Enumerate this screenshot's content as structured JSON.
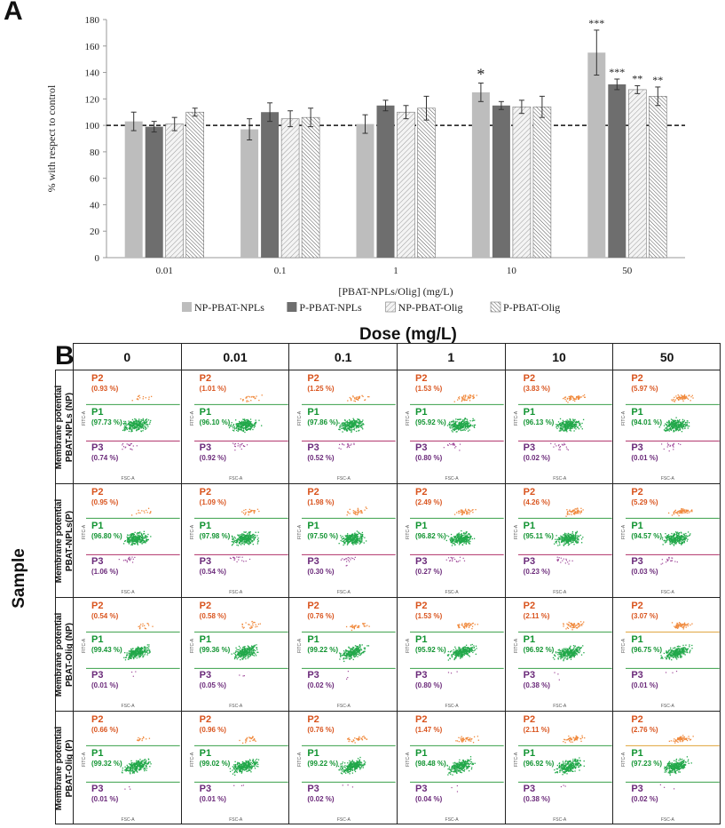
{
  "panel_a_letter": "A",
  "panel_b_letter": "B",
  "chart_data": {
    "type": "bar",
    "title": "",
    "xlabel": "[PBAT-NPLs/Olig] (mg/L)",
    "ylabel": "% with respect to control",
    "ylim": [
      0,
      180
    ],
    "yticks": [
      0,
      20,
      40,
      60,
      80,
      100,
      120,
      140,
      160,
      180
    ],
    "reference_line": 100,
    "legend_position": "bottom",
    "categories": [
      "0.01",
      "0.1",
      "1",
      "10",
      "50"
    ],
    "series": [
      {
        "name": "NP-PBAT-NPLs",
        "values": [
          103,
          97,
          101,
          125,
          155
        ],
        "errors": [
          7,
          8,
          7,
          7,
          17
        ],
        "significance": [
          "",
          "",
          "",
          "*",
          "***"
        ],
        "color": "#bdbdbd",
        "pattern": "solid"
      },
      {
        "name": "P-PBAT-NPLs",
        "values": [
          99,
          110,
          115,
          115,
          131
        ],
        "errors": [
          4,
          7,
          4,
          3,
          4
        ],
        "significance": [
          "",
          "",
          "",
          "",
          "***"
        ],
        "color": "#6e6e6e",
        "pattern": "solid"
      },
      {
        "name": "NP-PBAT-Olig",
        "values": [
          101,
          105,
          110,
          114,
          127
        ],
        "errors": [
          5,
          6,
          5,
          5,
          3
        ],
        "significance": [
          "",
          "",
          "",
          "",
          "**"
        ],
        "color": "#f2f2f2",
        "pattern": "hatch-light"
      },
      {
        "name": "P-PBAT-Olig",
        "values": [
          110,
          106,
          113,
          114,
          122
        ],
        "errors": [
          3,
          7,
          9,
          8,
          7
        ],
        "significance": [
          "",
          "",
          "",
          "",
          "**"
        ],
        "color": "#ffffff",
        "pattern": "hatch-dense"
      }
    ]
  },
  "flow": {
    "dose_title": "Dose (mg/L)",
    "sample_title": "Sample",
    "columns": [
      "0",
      "0.01",
      "0.1",
      "1",
      "10",
      "50"
    ],
    "axis_x": "FSC-A",
    "axis_y": "FITC-A",
    "gates": [
      "P2",
      "P1",
      "P3"
    ],
    "rows": [
      {
        "label_line1": "Membrane potential",
        "label_line2": "PBAT-NPLs (NP)",
        "p2": [
          "(0.93 %)",
          "(1.01 %)",
          "(1.25 %)",
          "(1.53 %)",
          "(3.83 %)",
          "(5.97 %)"
        ],
        "p1": [
          "(97.73 %)",
          "(96.10 %)",
          "(97.86 %)",
          "(95.92 %)",
          "(96.13 %)",
          "(94.01 %)"
        ],
        "p3": [
          "(0.74 %)",
          "(0.92 %)",
          "(0.52 %)",
          "(0.80 %)",
          "(0.02 %)",
          "(0.01 %)"
        ]
      },
      {
        "label_line1": "Membrane potential",
        "label_line2": "PBAT-NPLs(P)",
        "p2": [
          "(0.95 %)",
          "(1.09 %)",
          "(1.98 %)",
          "(2.49 %)",
          "(4.26 %)",
          "(5.29 %)"
        ],
        "p1": [
          "(96.80 %)",
          "(97.98 %)",
          "(97.50 %)",
          "(96.82 %)",
          "(95.11 %)",
          "(94.57 %)"
        ],
        "p3": [
          "(1.06 %)",
          "(0.54 %)",
          "(0.30 %)",
          "(0.27 %)",
          "(0.23 %)",
          "(0.03 %)"
        ]
      },
      {
        "label_line1": "Membrane potential",
        "label_line2": "PBAT-Olig (NP)",
        "p2": [
          "(0.54 %)",
          "(0.58 %)",
          "(0.76 %)",
          "(1.53 %)",
          "(2.11 %)",
          "(3.07 %)"
        ],
        "p1": [
          "(99.43 %)",
          "(99.36 %)",
          "(99.22 %)",
          "(95.92 %)",
          "(96.92 %)",
          "(96.75 %)"
        ],
        "p3": [
          "(0.01 %)",
          "(0.05 %)",
          "(0.02 %)",
          "(0.80 %)",
          "(0.38 %)",
          "(0.01 %)"
        ]
      },
      {
        "label_line1": "Membrane potential",
        "label_line2": "PBAT-Olig (P)",
        "p2": [
          "(0.66 %)",
          "(0.96 %)",
          "(0.76 %)",
          "(1.47 %)",
          "(2.11 %)",
          "(2.76 %)"
        ],
        "p1": [
          "(99.32 %)",
          "(99.02 %)",
          "(99.22 %)",
          "(98.48 %)",
          "(96.92 %)",
          "(97.23 %)"
        ],
        "p3": [
          "(0.01 %)",
          "(0.01 %)",
          "(0.02 %)",
          "(0.04 %)",
          "(0.38 %)",
          "(0.02 %)"
        ]
      }
    ]
  }
}
